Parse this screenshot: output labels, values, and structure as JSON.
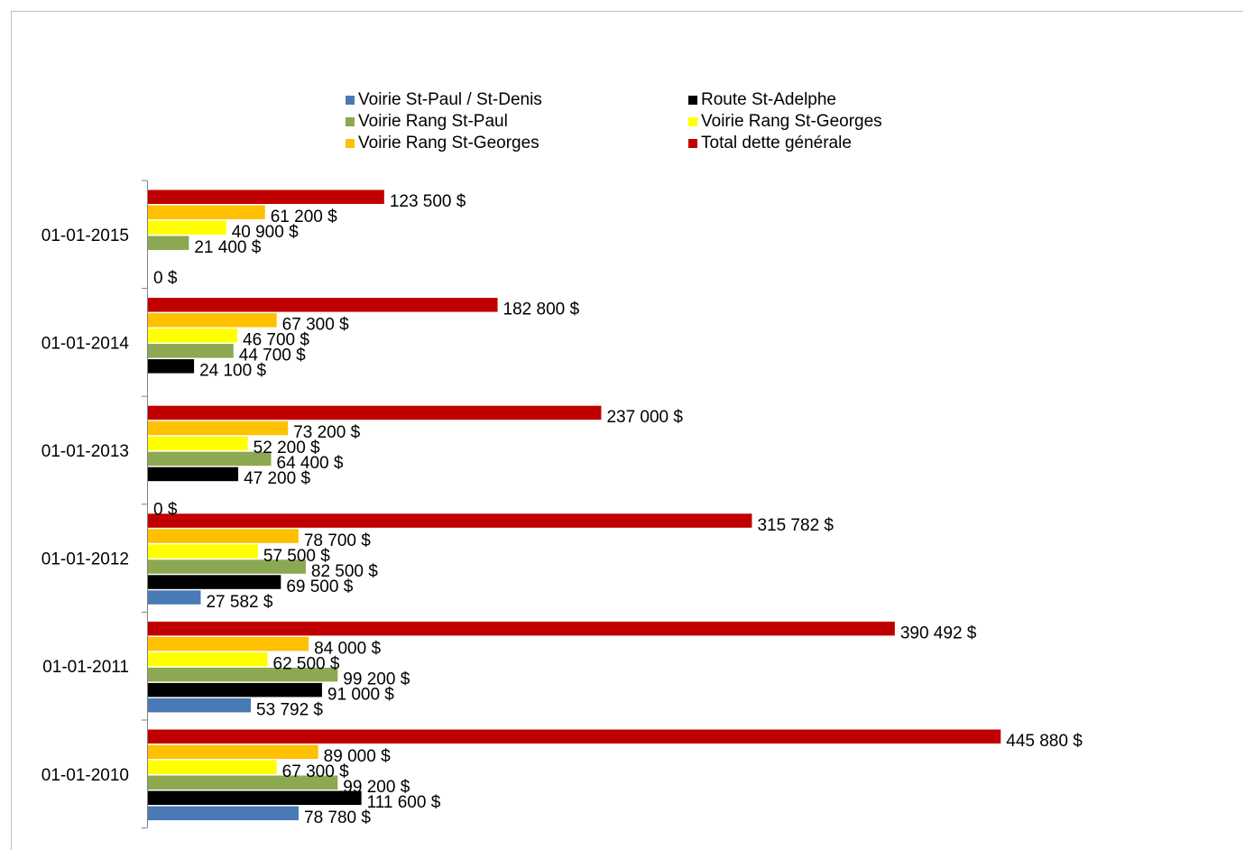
{
  "chart_data": {
    "type": "bar",
    "orientation": "horizontal",
    "title": "",
    "xlabel": "",
    "ylabel": "",
    "xlim": [
      0,
      500000
    ],
    "grid": false,
    "legend_position": "top",
    "categories": [
      "01-01-2010",
      "01-01-2011",
      "01-01-2012",
      "01-01-2013",
      "01-01-2014",
      "01-01-2015"
    ],
    "series": [
      {
        "name": "Voirie St-Paul / St-Denis",
        "color": "#4A7AB5",
        "values": [
          78780,
          53792,
          27582,
          null,
          null,
          0
        ],
        "labels": [
          "78 780 $",
          "53 792 $",
          "27 582 $",
          "",
          "",
          "0 $"
        ]
      },
      {
        "name": "Route St-Adelphe",
        "color": "#000000",
        "values": [
          111600,
          91000,
          69500,
          47200,
          24100,
          null
        ],
        "labels": [
          "111 600 $",
          "91 000 $",
          "69 500 $",
          "47 200 $",
          "24 100 $",
          ""
        ]
      },
      {
        "name": "Voirie Rang St-Paul",
        "color": "#8DA852",
        "values": [
          99200,
          99200,
          82500,
          64400,
          44700,
          21400
        ],
        "labels": [
          "99 200 $",
          "99 200 $",
          "82 500 $",
          "64 400 $",
          "44 700 $",
          "21 400 $"
        ]
      },
      {
        "name": "Voirie Rang St-Georges",
        "color": "#FFFF00",
        "values": [
          67300,
          62500,
          57500,
          52200,
          46700,
          40900
        ],
        "labels": [
          "67 300 $",
          "62 500 $",
          "57 500 $",
          "52 200 $",
          "46 700 $",
          "40 900 $"
        ]
      },
      {
        "name": "Voirie Rang St-Georges",
        "color": "#FFC000",
        "values": [
          89000,
          84000,
          78700,
          73200,
          67300,
          61200
        ],
        "labels": [
          "89 000 $",
          "84 000 $",
          "78 700 $",
          "73 200 $",
          "67 300 $",
          "61 200 $"
        ]
      },
      {
        "name": "Total dette générale",
        "color": "#C00000",
        "values": [
          445880,
          390492,
          315782,
          237000,
          182800,
          123500
        ],
        "labels": [
          "445 880 $",
          "390 492 $",
          "315 782 $",
          "237 000 $",
          "182 800 $",
          "123 500 $"
        ]
      }
    ],
    "extra_labels": [
      {
        "category": "01-01-2013",
        "text": "0 $"
      }
    ],
    "legend": [
      {
        "name": "Voirie St-Paul / St-Denis",
        "color": "#4A7AB5"
      },
      {
        "name": "Route St-Adelphe",
        "color": "#000000"
      },
      {
        "name": "Voirie Rang St-Paul",
        "color": "#8DA852"
      },
      {
        "name": "Voirie Rang St-Georges",
        "color": "#FFFF00"
      },
      {
        "name": "Voirie Rang St-Georges",
        "color": "#FFC000"
      },
      {
        "name": "Total dette générale",
        "color": "#C00000"
      }
    ]
  }
}
